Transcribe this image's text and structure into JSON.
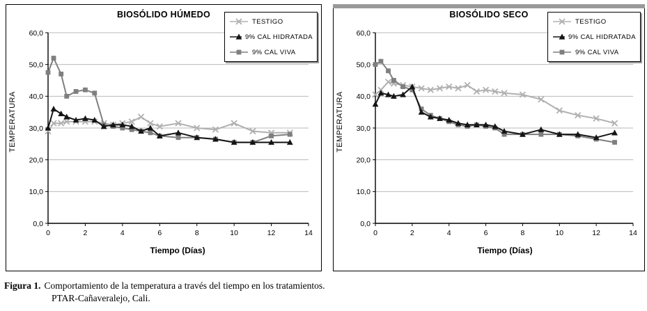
{
  "figure": {
    "caption_label": "Figura 1.",
    "caption_text": "Comportamiento de la temperatura a través del tiempo en los tratamientos.",
    "caption_line2": "PTAR-Cañaveralejo, Cali."
  },
  "colors": {
    "testigo": "#b0b0b0",
    "cal_hidratada": "#151515",
    "cal_viva": "#7f7f7f",
    "grid": "#b8b8b8",
    "axis": "#000000",
    "panel_border": "#000000"
  },
  "chart_data": [
    {
      "type": "line",
      "title": "BIOSÓLIDO HÚMEDO",
      "xlabel": "Tiempo (Días)",
      "ylabel": "TEMPERATURA",
      "xlim": [
        0,
        14
      ],
      "ylim": [
        0,
        60
      ],
      "xticks": [
        "0",
        "2",
        "4",
        "6",
        "8",
        "10",
        "12",
        "14"
      ],
      "yticks": [
        "0,0",
        "10,0",
        "20,0",
        "30,0",
        "40,0",
        "50,0",
        "60,0"
      ],
      "grid": "horizontal",
      "legend_position": "top-right",
      "x": [
        0,
        0.3,
        0.7,
        1,
        1.5,
        2,
        2.5,
        3,
        3.5,
        4,
        4.5,
        5,
        5.5,
        6,
        7,
        8,
        9,
        10,
        11,
        12,
        13
      ],
      "series": [
        {
          "name": "TESTIGO",
          "marker": "x",
          "color_key": "testigo",
          "y": [
            29,
            31.5,
            31.5,
            32,
            32,
            32,
            32,
            31.5,
            31,
            31.5,
            32,
            33.5,
            31.5,
            30.5,
            31.5,
            30,
            29.5,
            31.5,
            29,
            28.5,
            28.5
          ]
        },
        {
          "name": "9% CAL HIDRATADA",
          "marker": "triangle",
          "color_key": "cal_hidratada",
          "y": [
            30,
            36,
            34.5,
            33.5,
            32.5,
            33,
            32.5,
            30.5,
            31,
            31,
            30.5,
            29,
            30,
            27.5,
            28.5,
            27,
            26.5,
            25.5,
            25.5,
            25.5,
            25.5
          ]
        },
        {
          "name": "9% CAL VIVA",
          "marker": "square",
          "color_key": "cal_viva",
          "y": [
            47.5,
            52,
            47,
            40,
            41.5,
            42,
            41,
            31,
            30.5,
            30,
            29.5,
            29,
            28.5,
            27.5,
            27,
            27,
            26.5,
            25.5,
            25.5,
            27.5,
            28
          ]
        }
      ]
    },
    {
      "type": "line",
      "title": "BIOSÓLIDO SECO",
      "xlabel": "Tiempo (Días)",
      "ylabel": "TEMPERATURA",
      "xlim": [
        0,
        14
      ],
      "ylim": [
        0,
        60
      ],
      "xticks": [
        "0",
        "2",
        "4",
        "6",
        "8",
        "10",
        "12",
        "14"
      ],
      "yticks": [
        "0,0",
        "10,0",
        "20,0",
        "30,0",
        "40,0",
        "50,0",
        "60,0"
      ],
      "grid": "horizontal",
      "legend_position": "top-right",
      "x": [
        0,
        0.3,
        0.7,
        1,
        1.5,
        2,
        2.5,
        3,
        3.5,
        4,
        4.5,
        5,
        5.5,
        6,
        6.5,
        7,
        8,
        9,
        10,
        11,
        12,
        13
      ],
      "series": [
        {
          "name": "TESTIGO",
          "marker": "x",
          "color_key": "testigo",
          "y": [
            40.5,
            42,
            44.5,
            44,
            43.5,
            43,
            42.5,
            42,
            42.5,
            43,
            42.5,
            43.5,
            41.5,
            42,
            41.5,
            41,
            40.5,
            39,
            35.5,
            34,
            33,
            31.5
          ]
        },
        {
          "name": "9% CAL HIDRATADA",
          "marker": "triangle",
          "color_key": "cal_hidratada",
          "y": [
            37.5,
            41,
            40.5,
            40,
            40.5,
            43,
            35,
            33.5,
            33,
            32.5,
            31.5,
            31,
            31,
            31,
            30.5,
            29,
            28,
            29.5,
            28,
            28,
            27,
            28.5
          ]
        },
        {
          "name": "9% CAL VIVA",
          "marker": "square",
          "color_key": "cal_viva",
          "y": [
            50,
            51,
            48,
            45,
            43,
            42,
            36,
            34,
            33,
            32,
            31,
            30.5,
            31,
            30.5,
            30,
            28,
            28,
            28,
            28,
            27.5,
            26.5,
            25.5
          ]
        }
      ]
    }
  ]
}
